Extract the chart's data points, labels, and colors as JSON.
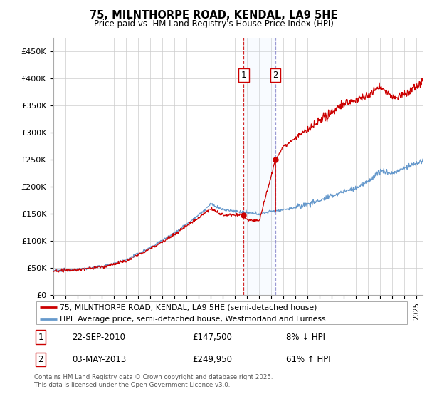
{
  "title": "75, MILNTHORPE ROAD, KENDAL, LA9 5HE",
  "subtitle": "Price paid vs. HM Land Registry's House Price Index (HPI)",
  "legend_line1": "75, MILNTHORPE ROAD, KENDAL, LA9 5HE (semi-detached house)",
  "legend_line2": "HPI: Average price, semi-detached house, Westmorland and Furness",
  "footer": "Contains HM Land Registry data © Crown copyright and database right 2025.\nThis data is licensed under the Open Government Licence v3.0.",
  "transaction1_date": "22-SEP-2010",
  "transaction1_price": "£147,500",
  "transaction1_hpi": "8% ↓ HPI",
  "transaction2_date": "03-MAY-2013",
  "transaction2_price": "£249,950",
  "transaction2_hpi": "61% ↑ HPI",
  "red_line_color": "#cc0000",
  "blue_line_color": "#6699cc",
  "grid_color": "#cccccc",
  "shade_color": "#ddeeff",
  "ylim_min": 0,
  "ylim_max": 475000,
  "yticks": [
    0,
    50000,
    100000,
    150000,
    200000,
    250000,
    300000,
    350000,
    400000,
    450000
  ],
  "ytick_labels": [
    "£0",
    "£50K",
    "£100K",
    "£150K",
    "£200K",
    "£250K",
    "£300K",
    "£350K",
    "£400K",
    "£450K"
  ],
  "transaction1_year": 2010.72,
  "transaction2_year": 2013.34,
  "transaction1_value": 147500,
  "transaction2_value": 249950,
  "hpi_multiplier": 1.61
}
